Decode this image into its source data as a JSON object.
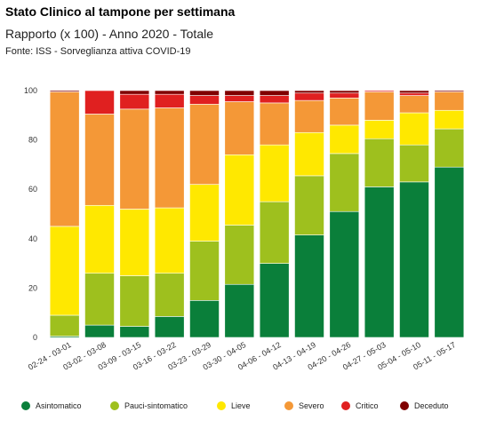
{
  "header": {
    "title": "Stato Clinico al tampone per settimana",
    "subtitle": "Rapporto (x 100) - Anno 2020 - Totale",
    "source": "Fonte: ISS - Sorveglianza attiva COVID-19"
  },
  "chart_data": {
    "type": "bar",
    "stacked": true,
    "title": "Stato Clinico al tampone per settimana",
    "subtitle": "Rapporto (x 100) - Anno 2020 - Totale",
    "ylim": [
      0,
      100
    ],
    "yticks": [
      0,
      20,
      40,
      60,
      80,
      100
    ],
    "grid": false,
    "legend_position": "bottom",
    "categories": [
      "02-24 - 03-01",
      "03-02 - 03-08",
      "03-09 - 03-15",
      "03-16 - 03-22",
      "03-23 - 03-29",
      "03-30 - 04-05",
      "04-06 - 04-12",
      "04-13 - 04-19",
      "04-20 - 04-26",
      "04-27 - 05-03",
      "05-04 - 05-10",
      "05-11 - 05-17"
    ],
    "series": [
      {
        "name": "Asintomatico",
        "color": "#0a7f3a",
        "values": [
          0.5,
          5,
          4.5,
          8.5,
          15,
          21.5,
          30,
          41.5,
          51,
          61,
          63,
          69
        ]
      },
      {
        "name": "Pauci-sintomatico",
        "color": "#9ec01e",
        "values": [
          8.5,
          21,
          20.5,
          17.5,
          24,
          24,
          25,
          24,
          23.5,
          19.5,
          15,
          15.5
        ]
      },
      {
        "name": "Lieve",
        "color": "#ffe800",
        "values": [
          36,
          27.5,
          27,
          26.5,
          23,
          28.5,
          23,
          17.5,
          11.5,
          7.5,
          13,
          7.5
        ]
      },
      {
        "name": "Severo",
        "color": "#f49837",
        "values": [
          54.5,
          37,
          40.5,
          40.5,
          32.5,
          21.5,
          17,
          13,
          11,
          11.5,
          7,
          7.5
        ]
      },
      {
        "name": "Critico",
        "color": "#e02020",
        "values": [
          0,
          9.5,
          6,
          5.5,
          3.5,
          2.5,
          3,
          3,
          2,
          0.5,
          1,
          0
        ]
      },
      {
        "name": "Deceduto",
        "color": "#800000",
        "values": [
          0.5,
          0,
          1.5,
          1.5,
          2,
          2,
          2,
          1,
          1,
          0,
          1,
          0.5
        ]
      }
    ]
  }
}
